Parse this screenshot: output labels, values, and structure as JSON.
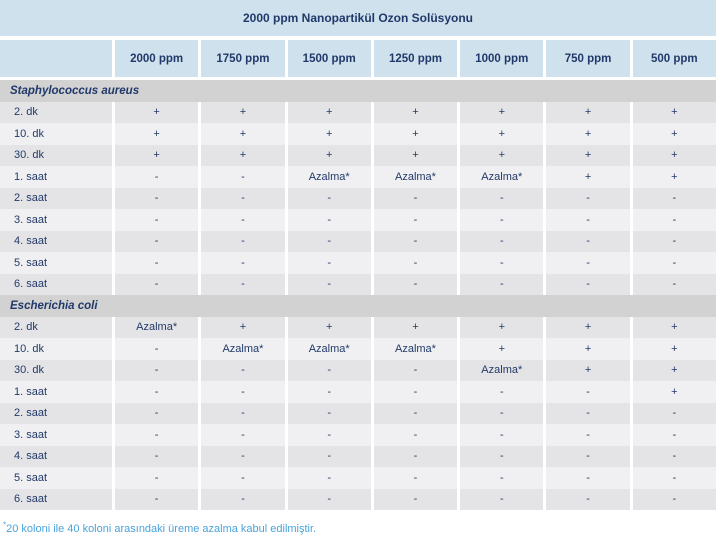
{
  "title": "2000 ppm Nanopartikül Ozon Solüsyonu",
  "columns": [
    "2000 ppm",
    "1750 ppm",
    "1500 ppm",
    "1250 ppm",
    "1000 ppm",
    "750 ppm",
    "500 ppm"
  ],
  "sections": [
    {
      "name": "Staphylococcus aureus",
      "rows": [
        {
          "label": "2. dk",
          "values": [
            "+",
            "+",
            "+",
            "+",
            "+",
            "+",
            "+"
          ]
        },
        {
          "label": "10. dk",
          "values": [
            "+",
            "+",
            "+",
            "+",
            "+",
            "+",
            "+"
          ]
        },
        {
          "label": "30. dk",
          "values": [
            "+",
            "+",
            "+",
            "+",
            "+",
            "+",
            "+"
          ]
        },
        {
          "label": "1. saat",
          "values": [
            "-",
            "-",
            "Azalma*",
            "Azalma*",
            "Azalma*",
            "+",
            "+"
          ]
        },
        {
          "label": "2. saat",
          "values": [
            "-",
            "-",
            "-",
            "-",
            "-",
            "-",
            "-"
          ]
        },
        {
          "label": "3. saat",
          "values": [
            "-",
            "-",
            "-",
            "-",
            "-",
            "-",
            "-"
          ]
        },
        {
          "label": "4. saat",
          "values": [
            "-",
            "-",
            "-",
            "-",
            "-",
            "-",
            "-"
          ]
        },
        {
          "label": "5. saat",
          "values": [
            "-",
            "-",
            "-",
            "-",
            "-",
            "-",
            "-"
          ]
        },
        {
          "label": "6. saat",
          "values": [
            "-",
            "-",
            "-",
            "-",
            "-",
            "-",
            "-"
          ]
        }
      ]
    },
    {
      "name": "Escherichia coli",
      "rows": [
        {
          "label": "2. dk",
          "values": [
            "Azalma*",
            "+",
            "+",
            "+",
            "+",
            "+",
            "+"
          ]
        },
        {
          "label": "10. dk",
          "values": [
            "-",
            "Azalma*",
            "Azalma*",
            "Azalma*",
            "+",
            "+",
            "+"
          ]
        },
        {
          "label": "30. dk",
          "values": [
            "-",
            "-",
            "-",
            "-",
            "Azalma*",
            "+",
            "+"
          ]
        },
        {
          "label": "1. saat",
          "values": [
            "-",
            "-",
            "-",
            "-",
            "-",
            "-",
            "+"
          ]
        },
        {
          "label": "2. saat",
          "values": [
            "-",
            "-",
            "-",
            "-",
            "-",
            "-",
            "-"
          ]
        },
        {
          "label": "3. saat",
          "values": [
            "-",
            "-",
            "-",
            "-",
            "-",
            "-",
            "-"
          ]
        },
        {
          "label": "4. saat",
          "values": [
            "-",
            "-",
            "-",
            "-",
            "-",
            "-",
            "-"
          ]
        },
        {
          "label": "5. saat",
          "values": [
            "-",
            "-",
            "-",
            "-",
            "-",
            "-",
            "-"
          ]
        },
        {
          "label": "6. saat",
          "values": [
            "-",
            "-",
            "-",
            "-",
            "-",
            "-",
            "-"
          ]
        }
      ]
    }
  ],
  "footnote": {
    "marker": "*",
    "text": "20 koloni ile 40 koloni arasındaki üreme azalma kabul edilmiştir."
  },
  "colors": {
    "header_bg": "#cfe1ed",
    "text_navy": "#21396a",
    "section_bg": "#d2d2d2",
    "row_dark": "#e4e4e7",
    "row_light": "#f0f0f2",
    "footnote_blue": "#4aa3da",
    "separator": "#ffffff"
  }
}
